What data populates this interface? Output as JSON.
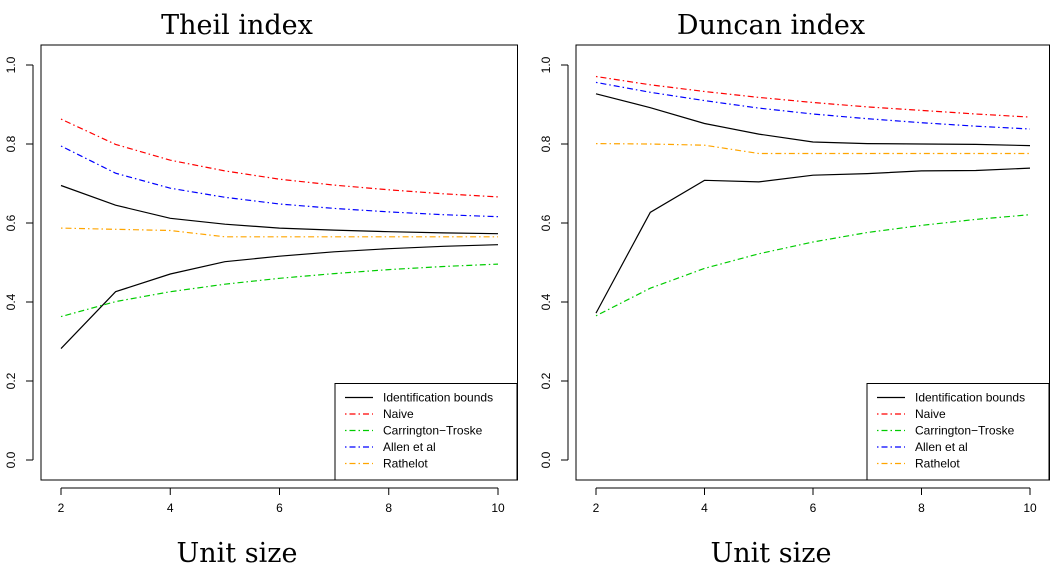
{
  "chart_data": [
    {
      "type": "line",
      "title": "Theil index",
      "xlabel": "Unit size",
      "ylabel": "",
      "xlim": [
        2,
        10
      ],
      "ylim": [
        0,
        1
      ],
      "xticks": [
        2,
        4,
        6,
        8,
        10
      ],
      "yticks": [
        0.0,
        0.2,
        0.4,
        0.6,
        0.8,
        1.0
      ],
      "ytick_labels": [
        "0.0",
        "0.2",
        "0.4",
        "0.6",
        "0.8",
        "1.0"
      ],
      "grid": false,
      "legend_position": "bottom-right",
      "x": [
        2,
        3,
        4,
        5,
        6,
        7,
        8,
        9,
        10
      ],
      "series": [
        {
          "name": "Identification bounds",
          "color": "#000000",
          "dash": "solid",
          "legend": true,
          "values": [
            0.695,
            0.645,
            0.612,
            0.597,
            0.587,
            0.582,
            0.578,
            0.575,
            0.573
          ]
        },
        {
          "name": "Identification bounds",
          "color": "#000000",
          "dash": "solid",
          "legend": false,
          "values": [
            0.282,
            0.426,
            0.471,
            0.502,
            0.516,
            0.527,
            0.535,
            0.541,
            0.545
          ]
        },
        {
          "name": "Naive",
          "color": "#ff0000",
          "dash": "dotdash",
          "legend": true,
          "values": [
            0.863,
            0.799,
            0.759,
            0.732,
            0.711,
            0.696,
            0.684,
            0.674,
            0.666
          ]
        },
        {
          "name": "Carrington−Troske",
          "color": "#00cc00",
          "dash": "dotdash",
          "legend": true,
          "values": [
            0.363,
            0.401,
            0.426,
            0.445,
            0.46,
            0.472,
            0.482,
            0.49,
            0.496
          ]
        },
        {
          "name": "Allen et al",
          "color": "#0000ff",
          "dash": "dotdash",
          "legend": true,
          "values": [
            0.795,
            0.726,
            0.688,
            0.665,
            0.648,
            0.637,
            0.628,
            0.621,
            0.616
          ]
        },
        {
          "name": "Rathelot",
          "color": "#ffa500",
          "dash": "dotdash",
          "legend": true,
          "values": [
            0.587,
            0.584,
            0.581,
            0.565,
            0.565,
            0.565,
            0.565,
            0.565,
            0.565
          ]
        }
      ]
    },
    {
      "type": "line",
      "title": "Duncan index",
      "xlabel": "Unit size",
      "ylabel": "",
      "xlim": [
        2,
        10
      ],
      "ylim": [
        0,
        1
      ],
      "xticks": [
        2,
        4,
        6,
        8,
        10
      ],
      "yticks": [
        0.0,
        0.2,
        0.4,
        0.6,
        0.8,
        1.0
      ],
      "ytick_labels": [
        "0.0",
        "0.2",
        "0.4",
        "0.6",
        "0.8",
        "1.0"
      ],
      "grid": false,
      "legend_position": "bottom-right",
      "x": [
        2,
        3,
        4,
        5,
        6,
        7,
        8,
        9,
        10
      ],
      "series": [
        {
          "name": "Identification bounds",
          "color": "#000000",
          "dash": "solid",
          "legend": true,
          "values": [
            0.927,
            0.892,
            0.852,
            0.825,
            0.805,
            0.801,
            0.8,
            0.799,
            0.796
          ]
        },
        {
          "name": "Identification bounds",
          "color": "#000000",
          "dash": "solid",
          "legend": false,
          "values": [
            0.372,
            0.627,
            0.708,
            0.704,
            0.721,
            0.725,
            0.732,
            0.733,
            0.739
          ]
        },
        {
          "name": "Naive",
          "color": "#ff0000",
          "dash": "dotdash",
          "legend": true,
          "values": [
            0.971,
            0.95,
            0.933,
            0.918,
            0.905,
            0.894,
            0.885,
            0.876,
            0.868
          ]
        },
        {
          "name": "Carrington−Troske",
          "color": "#00cc00",
          "dash": "dotdash",
          "legend": true,
          "values": [
            0.365,
            0.435,
            0.485,
            0.522,
            0.552,
            0.576,
            0.594,
            0.609,
            0.621
          ]
        },
        {
          "name": "Allen et al",
          "color": "#0000ff",
          "dash": "dotdash",
          "legend": true,
          "values": [
            0.956,
            0.931,
            0.91,
            0.891,
            0.876,
            0.864,
            0.854,
            0.845,
            0.838
          ]
        },
        {
          "name": "Rathelot",
          "color": "#ffa500",
          "dash": "dotdash",
          "legend": true,
          "values": [
            0.801,
            0.8,
            0.797,
            0.776,
            0.776,
            0.776,
            0.776,
            0.776,
            0.776
          ]
        }
      ]
    }
  ]
}
